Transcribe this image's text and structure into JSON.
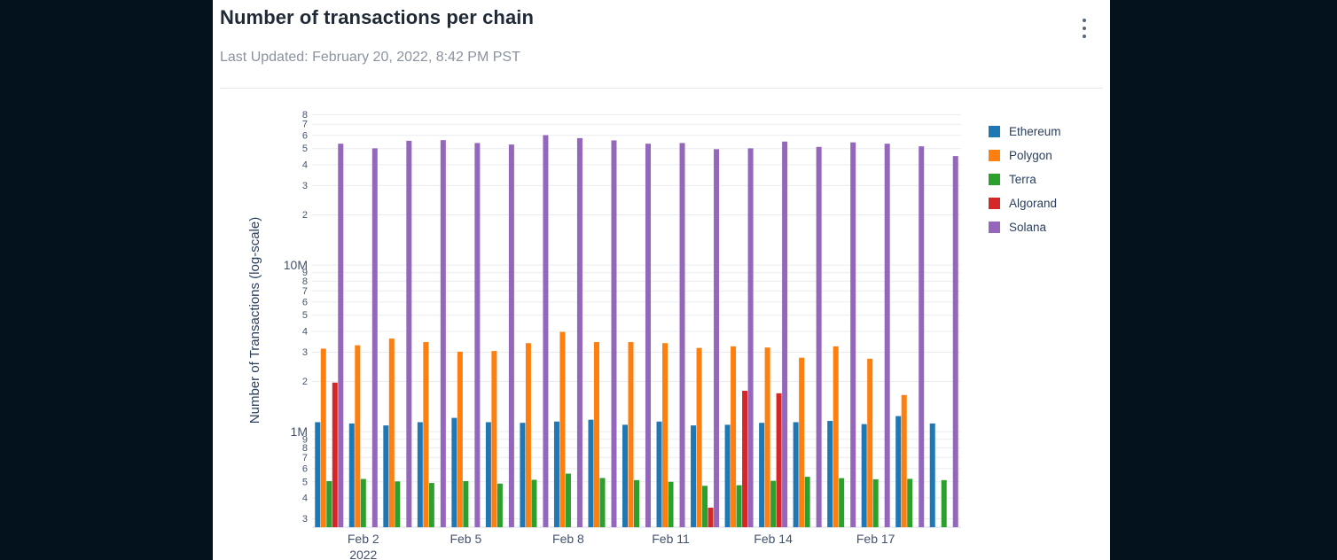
{
  "header": {
    "title": "Number of transactions per chain",
    "subtitle": "Last Updated: February 20, 2022, 8:42 PM PST",
    "menu_icon": "kebab-menu-icon"
  },
  "colors": {
    "page_background": "#03121d",
    "card_background": "#ffffff",
    "grid_line": "#e9ecef",
    "axis_line": "#d5dae0",
    "tick_text": "#42526e",
    "axis_title_text": "#2a3f5f"
  },
  "legend": {
    "items": [
      {
        "label": "Ethereum",
        "color": "#1f77b4"
      },
      {
        "label": "Polygon",
        "color": "#ff7f0e"
      },
      {
        "label": "Terra",
        "color": "#2ca02c"
      },
      {
        "label": "Algorand",
        "color": "#d62728"
      },
      {
        "label": "Solana",
        "color": "#9467bd"
      }
    ]
  },
  "chart_data": {
    "type": "bar",
    "title": "Number of transactions per chain",
    "xlabel": "",
    "ylabel": "Number of Transactions (log-scale)",
    "yscale": "log",
    "ylim": [
      267000,
      81300000
    ],
    "grid": "horizontal",
    "legend_position": "right-top",
    "x": [
      "Feb 1",
      "Feb 2",
      "Feb 3",
      "Feb 4",
      "Feb 5",
      "Feb 6",
      "Feb 7",
      "Feb 8",
      "Feb 9",
      "Feb 10",
      "Feb 11",
      "Feb 12",
      "Feb 13",
      "Feb 14",
      "Feb 15",
      "Feb 16",
      "Feb 17",
      "Feb 18",
      "Feb 19"
    ],
    "x_year": "2022",
    "x_tick_labels": [
      {
        "index": 1,
        "label": "Feb 2",
        "sublabel": "2022"
      },
      {
        "index": 4,
        "label": "Feb 5",
        "sublabel": ""
      },
      {
        "index": 7,
        "label": "Feb 8",
        "sublabel": ""
      },
      {
        "index": 10,
        "label": "Feb 11",
        "sublabel": ""
      },
      {
        "index": 13,
        "label": "Feb 14",
        "sublabel": ""
      },
      {
        "index": 16,
        "label": "Feb 17",
        "sublabel": ""
      }
    ],
    "y_ticks": [
      {
        "value": 300000,
        "label": "3",
        "major": false
      },
      {
        "value": 400000,
        "label": "4",
        "major": false
      },
      {
        "value": 500000,
        "label": "5",
        "major": false
      },
      {
        "value": 600000,
        "label": "6",
        "major": false
      },
      {
        "value": 700000,
        "label": "7",
        "major": false
      },
      {
        "value": 800000,
        "label": "8",
        "major": false
      },
      {
        "value": 900000,
        "label": "9",
        "major": false
      },
      {
        "value": 1000000,
        "label": "1M",
        "major": true
      },
      {
        "value": 2000000,
        "label": "2",
        "major": false
      },
      {
        "value": 3000000,
        "label": "3",
        "major": false
      },
      {
        "value": 4000000,
        "label": "4",
        "major": false
      },
      {
        "value": 5000000,
        "label": "5",
        "major": false
      },
      {
        "value": 6000000,
        "label": "6",
        "major": false
      },
      {
        "value": 7000000,
        "label": "7",
        "major": false
      },
      {
        "value": 8000000,
        "label": "8",
        "major": false
      },
      {
        "value": 9000000,
        "label": "9",
        "major": false
      },
      {
        "value": 10000000,
        "label": "10M",
        "major": true
      },
      {
        "value": 20000000,
        "label": "2",
        "major": false
      },
      {
        "value": 30000000,
        "label": "3",
        "major": false
      },
      {
        "value": 40000000,
        "label": "4",
        "major": false
      },
      {
        "value": 50000000,
        "label": "5",
        "major": false
      },
      {
        "value": 60000000,
        "label": "6",
        "major": false
      },
      {
        "value": 70000000,
        "label": "7",
        "major": false
      },
      {
        "value": 80000000,
        "label": "8",
        "major": false
      }
    ],
    "series": [
      {
        "name": "Ethereum",
        "color": "#1f77b4",
        "values": [
          1140000,
          1120000,
          1090000,
          1140000,
          1210000,
          1140000,
          1130000,
          1150000,
          1180000,
          1100000,
          1150000,
          1090000,
          1100000,
          1130000,
          1140000,
          1160000,
          1110000,
          1240000,
          1120000
        ]
      },
      {
        "name": "Polygon",
        "color": "#ff7f0e",
        "values": [
          3150000,
          3300000,
          3620000,
          3450000,
          3020000,
          3050000,
          3400000,
          3970000,
          3450000,
          3450000,
          3400000,
          3180000,
          3250000,
          3200000,
          2780000,
          3250000,
          2740000,
          1660000,
          null
        ]
      },
      {
        "name": "Terra",
        "color": "#2ca02c",
        "values": [
          505000,
          520000,
          503000,
          492000,
          505000,
          488000,
          514000,
          560000,
          527000,
          512000,
          500000,
          473000,
          477000,
          507000,
          536000,
          526000,
          518000,
          521000,
          512000
        ]
      },
      {
        "name": "Algorand",
        "color": "#d62728",
        "values": [
          1970000,
          null,
          null,
          null,
          null,
          null,
          null,
          null,
          null,
          null,
          null,
          350000,
          1760000,
          1700000,
          null,
          null,
          null,
          null,
          null
        ]
      },
      {
        "name": "Solana",
        "color": "#9467bd",
        "values": [
          53500000,
          50200000,
          55700000,
          56200000,
          54000000,
          52900000,
          60200000,
          57800000,
          56000000,
          53500000,
          54000000,
          49600000,
          50200000,
          55100000,
          51200000,
          54500000,
          53500000,
          51600000,
          45100000
        ]
      }
    ]
  }
}
